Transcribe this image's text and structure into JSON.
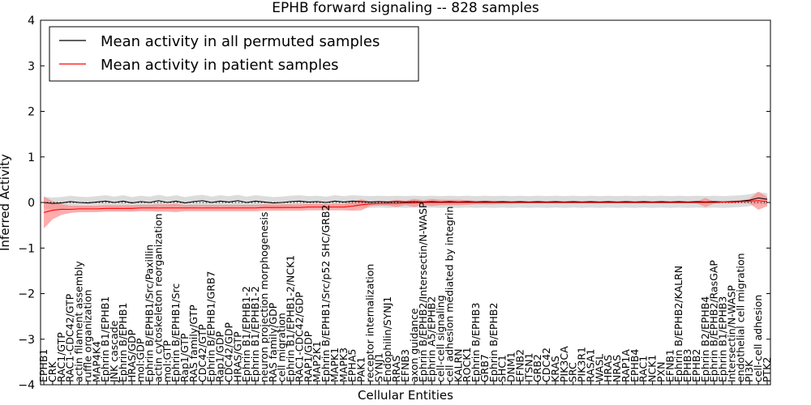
{
  "chart_data": {
    "type": "line",
    "title": "EPHB forward signaling -- 828 samples",
    "xlabel": "Cellular Entities",
    "ylabel": "Inferred Activity",
    "ylim": [
      -4,
      4
    ],
    "yticks": [
      -4,
      -3,
      -2,
      -1,
      0,
      1,
      2,
      3,
      4
    ],
    "categories": [
      "EPHB1",
      "CRK",
      "RAC1/GTP",
      "RAC1-CDC42/GTP",
      "actin filament assembly",
      "ruffle organization",
      "MAP4K4",
      "Ephrin B1/EPHB1",
      "JNK cascade",
      "Ephrin B/EPHB1",
      "HRAS/GDP",
      "mol:GDP",
      "Ephrin B/EPHB1/Src/Paxillin",
      "actin cytoskeleton reorganization",
      "mol:GTP",
      "Ephrin B/EPHB1/Src",
      "Rap1/GTP",
      "RAS family/GTP",
      "CDC42/GTP",
      "Ephrin B/EPHB1/GRB7",
      "Rap1/GDP",
      "CDC42/GDP",
      "HRAS/GTP",
      "Ephrin B1/EPHB1-2",
      "Ephrin B1/EPHB1-2",
      "neuron projection morphogenesis",
      "RAS family/GDP",
      "cell migration",
      "Ephrin B1/EPHB1-2/NCK1",
      "RAC1-CDC42/GDP",
      "RAP1/GDP",
      "MAP2K1",
      "Ephrin B/EPHB1/Src/p52 SHC/GRB2",
      "MAPK1",
      "MAPK3",
      "EPHA5",
      "PAK1",
      "receptor internalization",
      "SYNJ1",
      "Endophilin/SYNJ1",
      "RRAS",
      "EFNB3",
      "axon guidance",
      "Ephrin B/EPHB2/Intersectin/N-WASP",
      "Ephrin A5/EPHB2",
      "cell-cell signaling",
      "cell adhesion mediated by integrin",
      "KALRN",
      "ROCK1",
      "Ephrin B/EPHB3",
      "GRB7",
      "Ephrin B/EPHB2",
      "SHC1",
      "DNM1",
      "EFNB2",
      "ITSN1",
      "GRB2",
      "CDC42",
      "KRAS",
      "PIK3CA",
      "SRC",
      "PIK3R1",
      "RASA1",
      "WASL",
      "HRAS",
      "NRAS",
      "RAP1A",
      "EPHB4",
      "RAC1",
      "NCK1",
      "PXN",
      "EFNB1",
      "Ephrin B/EPHB2/KALRN",
      "EPHB3",
      "EPHB2",
      "Ephrin B2/EPHB4",
      "Ephrin B/EPHB2/RasGAP",
      "Ephrin B1/EPHB3",
      "Intersectin/N-WASP",
      "endothelial cell migration",
      "PI3K",
      "cell-cell adhesion",
      "PTK2"
    ],
    "series": [
      {
        "name": "Mean activity in all permuted samples",
        "color": "#000000",
        "values": [
          0.0,
          -0.02,
          -0.01,
          0.02,
          0.0,
          -0.01,
          0.01,
          0.03,
          0.0,
          0.03,
          -0.01,
          0.02,
          0.0,
          0.04,
          0.0,
          0.03,
          -0.01,
          0.02,
          0.04,
          0.0,
          0.03,
          0.01,
          0.04,
          0.0,
          0.03,
          0.01,
          -0.01,
          0.0,
          0.02,
          0.03,
          0.01,
          0.02,
          0.0,
          0.03,
          0.01,
          0.03,
          0.02,
          0.01,
          0.02,
          0.01,
          0.02,
          0.01,
          0.02,
          0.01,
          0.02,
          0.01,
          0.02,
          0.01,
          0.02,
          0.01,
          0.02,
          0.01,
          0.02,
          0.01,
          0.02,
          0.01,
          0.02,
          0.01,
          0.02,
          0.01,
          0.02,
          0.01,
          0.02,
          0.01,
          0.02,
          0.01,
          0.02,
          0.01,
          0.02,
          0.01,
          0.02,
          0.01,
          0.02,
          0.01,
          0.02,
          0.01,
          0.02,
          0.01,
          0.02,
          0.03,
          0.05,
          0.1,
          0.07
        ],
        "band": 0.13
      },
      {
        "name": "Mean activity in patient samples",
        "color": "#ff0000",
        "band_color": "#ff7f7f",
        "values": [
          -0.22,
          -0.17,
          -0.15,
          -0.15,
          -0.14,
          -0.14,
          -0.14,
          -0.13,
          -0.13,
          -0.13,
          -0.13,
          -0.12,
          -0.12,
          -0.12,
          -0.12,
          -0.12,
          -0.12,
          -0.12,
          -0.12,
          -0.12,
          -0.12,
          -0.12,
          -0.12,
          -0.12,
          -0.12,
          -0.11,
          -0.11,
          -0.11,
          -0.11,
          -0.11,
          -0.1,
          -0.1,
          -0.1,
          -0.1,
          -0.1,
          -0.08,
          -0.05,
          -0.03,
          -0.02,
          -0.02,
          -0.02,
          -0.01,
          -0.01,
          0.0,
          0.0,
          0.0,
          0.0,
          0.0,
          0.0,
          0.0,
          0.0,
          0.0,
          0.0,
          0.0,
          0.0,
          0.0,
          0.0,
          0.0,
          0.0,
          0.0,
          0.0,
          0.0,
          0.0,
          0.0,
          0.0,
          0.0,
          0.0,
          0.0,
          0.0,
          0.0,
          0.0,
          0.0,
          0.0,
          0.0,
          0.0,
          0.0,
          0.0,
          0.01,
          0.01,
          0.02,
          0.03,
          0.04,
          0.02
        ],
        "band": [
          0.35,
          0.2,
          0.12,
          0.08,
          0.07,
          0.07,
          0.07,
          0.07,
          0.07,
          0.07,
          0.07,
          0.07,
          0.07,
          0.08,
          0.08,
          0.09,
          0.07,
          0.07,
          0.07,
          0.07,
          0.07,
          0.07,
          0.07,
          0.07,
          0.07,
          0.07,
          0.07,
          0.07,
          0.07,
          0.07,
          0.07,
          0.07,
          0.07,
          0.07,
          0.07,
          0.1,
          0.12,
          0.05,
          0.05,
          0.05,
          0.08,
          0.05,
          0.09,
          0.05,
          0.08,
          0.06,
          0.06,
          0.06,
          0.05,
          0.04,
          0.04,
          0.04,
          0.03,
          0.03,
          0.02,
          0.02,
          0.02,
          0.02,
          0.02,
          0.02,
          0.02,
          0.02,
          0.02,
          0.02,
          0.02,
          0.02,
          0.02,
          0.02,
          0.02,
          0.02,
          0.02,
          0.02,
          0.02,
          0.02,
          0.02,
          0.1,
          0.02,
          0.02,
          0.03,
          0.03,
          0.05,
          0.2,
          0.1
        ]
      }
    ],
    "legend": {
      "position": "top-left",
      "entries": [
        "Mean activity in all permuted samples",
        "Mean activity in patient samples"
      ]
    },
    "grid": false
  }
}
